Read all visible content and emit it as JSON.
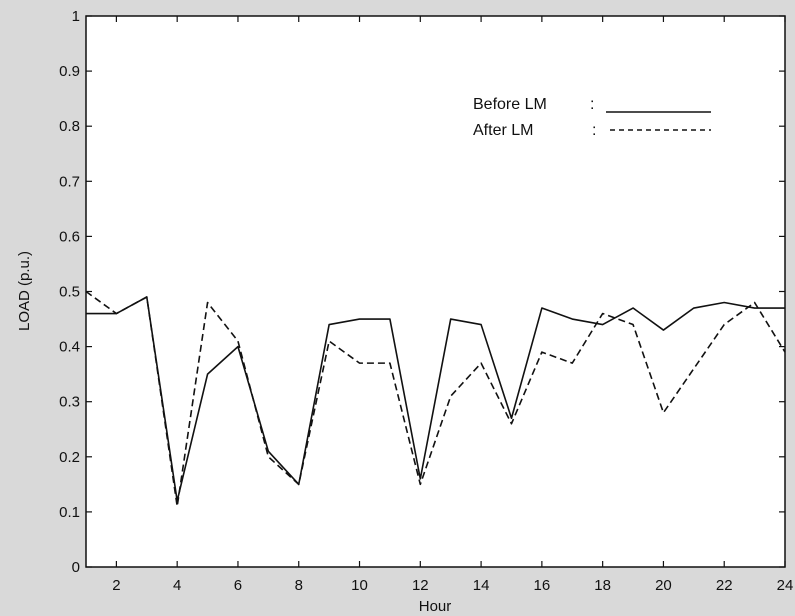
{
  "colors": {
    "background": "#d9d9d9",
    "plot_area": "#ffffff",
    "line": "#111111"
  },
  "chart_data": {
    "type": "line",
    "title": "",
    "xlabel": "Hour",
    "ylabel": "LOAD (p.u.)",
    "xlim": [
      1,
      24
    ],
    "ylim": [
      0,
      1
    ],
    "xticks": [
      2,
      4,
      6,
      8,
      10,
      12,
      14,
      16,
      18,
      20,
      22,
      24
    ],
    "yticks": [
      0,
      0.1,
      0.2,
      0.3,
      0.4,
      0.5,
      0.6,
      0.7,
      0.8,
      0.9,
      1
    ],
    "grid": false,
    "legend_position": "top-right",
    "x": [
      1,
      2,
      3,
      4,
      5,
      6,
      7,
      8,
      9,
      10,
      11,
      12,
      13,
      14,
      15,
      16,
      17,
      18,
      19,
      20,
      21,
      22,
      23,
      24
    ],
    "series": [
      {
        "name": "Before LM",
        "legend_colon": ":",
        "style": "solid",
        "values": [
          0.46,
          0.46,
          0.49,
          0.12,
          0.35,
          0.4,
          0.21,
          0.15,
          0.44,
          0.45,
          0.45,
          0.16,
          0.45,
          0.44,
          0.27,
          0.47,
          0.45,
          0.44,
          0.47,
          0.43,
          0.47,
          0.48,
          0.47,
          0.47
        ]
      },
      {
        "name": "After LM",
        "legend_colon": ":",
        "style": "dashed",
        "values": [
          0.5,
          0.46,
          0.49,
          0.11,
          0.48,
          0.41,
          0.2,
          0.15,
          0.41,
          0.37,
          0.37,
          0.15,
          0.31,
          0.37,
          0.26,
          0.39,
          0.37,
          0.46,
          0.44,
          0.28,
          0.36,
          0.44,
          0.48,
          0.39
        ]
      }
    ]
  }
}
